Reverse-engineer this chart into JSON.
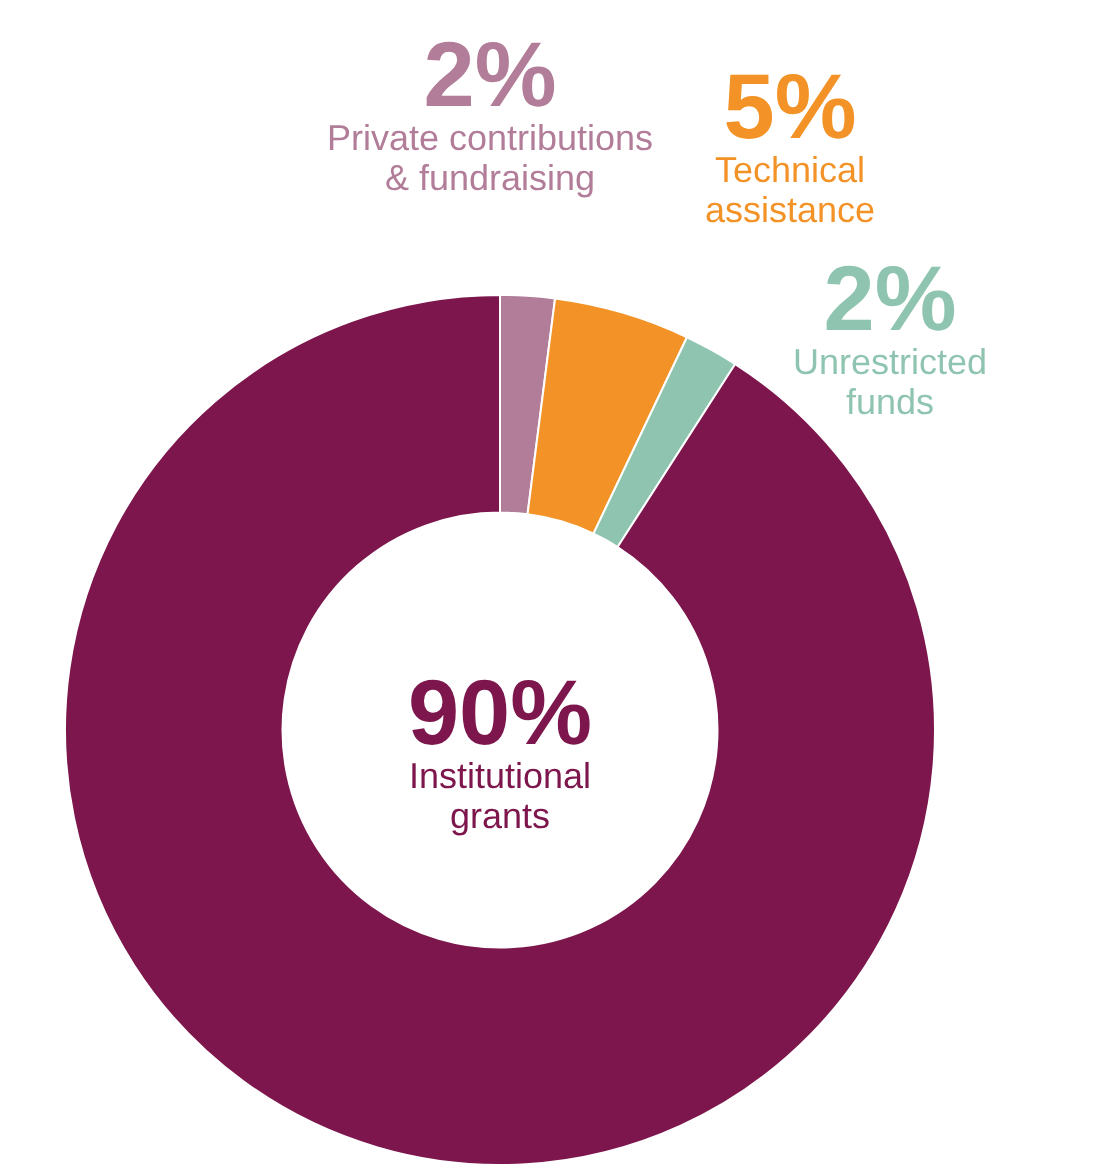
{
  "chart_data": {
    "type": "donut",
    "categories": [
      "Private contributions & fundraising",
      "Technical assistance",
      "Unrestricted funds",
      "Institutional grants"
    ],
    "values": [
      2,
      5,
      2,
      90
    ],
    "value_labels": [
      "2%",
      "5%",
      "2%",
      "90%"
    ],
    "colors": [
      "#b27d98",
      "#f39327",
      "#8fc5b0",
      "#7c164c"
    ],
    "legend": false
  }
}
